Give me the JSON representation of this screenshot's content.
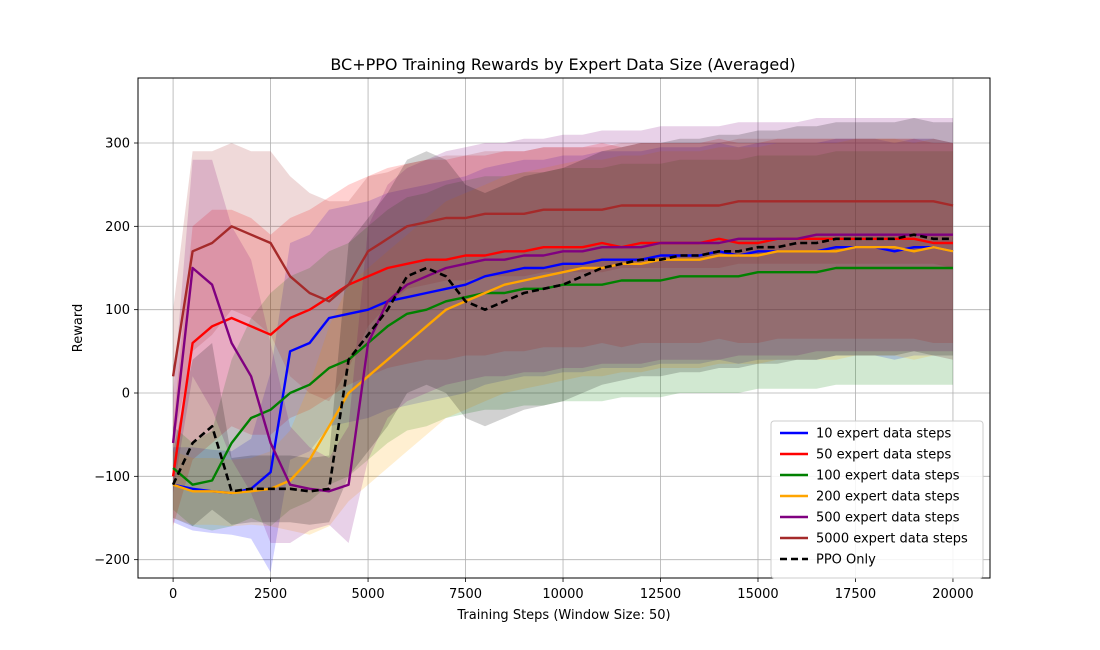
{
  "chart_data": {
    "type": "line",
    "title": "BC+PPO Training Rewards by Expert Data Size (Averaged)",
    "xlabel": "Training Steps (Window Size: 50)",
    "ylabel": "Reward",
    "xlim": [
      -900,
      20950
    ],
    "ylim": [
      -222,
      378
    ],
    "xticks": [
      0,
      2500,
      5000,
      7500,
      10000,
      12500,
      15000,
      17500,
      20000
    ],
    "yticks": [
      -200,
      -100,
      0,
      100,
      200,
      300
    ],
    "grid": true,
    "legend_position": "lower-right",
    "series": [
      {
        "name": "10 expert data steps",
        "color": "#0000ff",
        "dashed": false,
        "x": [
          0,
          500,
          1000,
          1500,
          2000,
          2500,
          3000,
          3500,
          4000,
          4500,
          5000,
          5500,
          6000,
          6500,
          7000,
          7500,
          8000,
          8500,
          9000,
          9500,
          10000,
          10500,
          11000,
          11500,
          12000,
          12500,
          13000,
          13500,
          14000,
          14500,
          15000,
          15500,
          16000,
          16500,
          17000,
          17500,
          18000,
          18500,
          19000,
          19500,
          20000
        ],
        "y": [
          -110,
          -115,
          -118,
          -120,
          -115,
          -95,
          50,
          60,
          90,
          95,
          100,
          110,
          115,
          120,
          125,
          130,
          140,
          145,
          150,
          150,
          155,
          155,
          160,
          160,
          160,
          165,
          165,
          165,
          170,
          165,
          170,
          170,
          170,
          170,
          175,
          175,
          175,
          170,
          175,
          175,
          170
        ],
        "band": [
          45,
          50,
          50,
          50,
          60,
          120,
          130,
          130,
          130,
          130,
          130,
          130,
          130,
          130,
          130,
          130,
          130,
          130,
          130,
          130,
          130,
          130,
          130,
          130,
          130,
          130,
          130,
          130,
          130,
          130,
          130,
          130,
          130,
          130,
          130,
          130,
          130,
          130,
          130,
          130,
          130
        ]
      },
      {
        "name": "50 expert data steps",
        "color": "#ff0000",
        "dashed": false,
        "x": [
          0,
          500,
          1000,
          1500,
          2000,
          2500,
          3000,
          3500,
          4000,
          4500,
          5000,
          5500,
          6000,
          6500,
          7000,
          7500,
          8000,
          8500,
          9000,
          9500,
          10000,
          10500,
          11000,
          11500,
          12000,
          12500,
          13000,
          13500,
          14000,
          14500,
          15000,
          15500,
          16000,
          16500,
          17000,
          17500,
          18000,
          18500,
          19000,
          19500,
          20000
        ],
        "y": [
          -100,
          60,
          80,
          90,
          80,
          70,
          90,
          100,
          115,
          130,
          140,
          150,
          155,
          160,
          160,
          165,
          165,
          170,
          170,
          175,
          175,
          175,
          180,
          175,
          180,
          180,
          180,
          180,
          185,
          180,
          180,
          185,
          185,
          185,
          185,
          185,
          185,
          185,
          185,
          180,
          180
        ],
        "band": [
          60,
          140,
          140,
          130,
          130,
          120,
          120,
          120,
          120,
          120,
          120,
          120,
          120,
          120,
          120,
          120,
          120,
          120,
          120,
          120,
          120,
          120,
          120,
          120,
          120,
          120,
          120,
          120,
          120,
          120,
          120,
          120,
          120,
          120,
          120,
          120,
          120,
          120,
          120,
          120,
          120
        ]
      },
      {
        "name": "100 expert data steps",
        "color": "#008000",
        "dashed": false,
        "x": [
          0,
          500,
          1000,
          1500,
          2000,
          2500,
          3000,
          3500,
          4000,
          4500,
          5000,
          5500,
          6000,
          6500,
          7000,
          7500,
          8000,
          8500,
          9000,
          9500,
          10000,
          10500,
          11000,
          11500,
          12000,
          12500,
          13000,
          13500,
          14000,
          14500,
          15000,
          15500,
          16000,
          16500,
          17000,
          17500,
          18000,
          18500,
          19000,
          19500,
          20000
        ],
        "y": [
          -90,
          -110,
          -105,
          -60,
          -30,
          -20,
          0,
          10,
          30,
          40,
          60,
          80,
          95,
          100,
          110,
          115,
          120,
          120,
          125,
          125,
          130,
          130,
          130,
          135,
          135,
          135,
          140,
          140,
          140,
          140,
          145,
          145,
          145,
          145,
          150,
          150,
          150,
          150,
          150,
          150,
          150
        ],
        "band": [
          50,
          50,
          60,
          100,
          120,
          140,
          140,
          140,
          140,
          140,
          140,
          140,
          140,
          140,
          140,
          140,
          140,
          140,
          140,
          140,
          140,
          140,
          140,
          140,
          140,
          140,
          140,
          140,
          140,
          140,
          140,
          140,
          140,
          140,
          140,
          140,
          140,
          140,
          140,
          140,
          140
        ]
      },
      {
        "name": "200 expert data steps",
        "color": "#ffa500",
        "dashed": false,
        "x": [
          0,
          500,
          1000,
          1500,
          2000,
          2500,
          3000,
          3500,
          4000,
          4500,
          5000,
          5500,
          6000,
          6500,
          7000,
          7500,
          8000,
          8500,
          9000,
          9500,
          10000,
          10500,
          11000,
          11500,
          12000,
          12500,
          13000,
          13500,
          14000,
          14500,
          15000,
          15500,
          16000,
          16500,
          17000,
          17500,
          18000,
          18500,
          19000,
          19500,
          20000
        ],
        "y": [
          -110,
          -118,
          -118,
          -120,
          -118,
          -115,
          -105,
          -80,
          -40,
          0,
          20,
          40,
          60,
          80,
          100,
          110,
          120,
          130,
          135,
          140,
          145,
          150,
          150,
          155,
          155,
          160,
          160,
          160,
          165,
          165,
          165,
          170,
          170,
          170,
          170,
          175,
          175,
          175,
          170,
          175,
          170
        ],
        "band": [
          40,
          40,
          40,
          40,
          40,
          45,
          60,
          90,
          120,
          130,
          130,
          130,
          130,
          130,
          130,
          130,
          130,
          130,
          130,
          130,
          130,
          130,
          130,
          130,
          130,
          130,
          130,
          130,
          130,
          130,
          130,
          130,
          130,
          130,
          130,
          130,
          130,
          130,
          130,
          130,
          130
        ]
      },
      {
        "name": "500 expert data steps",
        "color": "#800080",
        "dashed": false,
        "x": [
          0,
          500,
          1000,
          1500,
          2000,
          2500,
          3000,
          3500,
          4000,
          4500,
          5000,
          5500,
          6000,
          6500,
          7000,
          7500,
          8000,
          8500,
          9000,
          9500,
          10000,
          10500,
          11000,
          11500,
          12000,
          12500,
          13000,
          13500,
          14000,
          14500,
          15000,
          15500,
          16000,
          16500,
          17000,
          17500,
          18000,
          18500,
          19000,
          19500,
          20000
        ],
        "y": [
          -60,
          150,
          130,
          60,
          20,
          -60,
          -110,
          -115,
          -118,
          -110,
          60,
          110,
          130,
          140,
          150,
          155,
          160,
          160,
          165,
          165,
          170,
          170,
          175,
          175,
          175,
          180,
          180,
          180,
          180,
          185,
          185,
          185,
          185,
          190,
          190,
          190,
          190,
          190,
          190,
          190,
          190
        ],
        "band": [
          60,
          130,
          150,
          140,
          140,
          120,
          70,
          50,
          40,
          70,
          140,
          140,
          140,
          140,
          140,
          140,
          140,
          140,
          140,
          140,
          140,
          140,
          140,
          140,
          140,
          140,
          140,
          140,
          140,
          140,
          140,
          140,
          140,
          140,
          140,
          140,
          140,
          140,
          140,
          140,
          140
        ]
      },
      {
        "name": "5000 expert data steps",
        "color": "#a52a2a",
        "dashed": false,
        "x": [
          0,
          500,
          1000,
          1500,
          2000,
          2500,
          3000,
          3500,
          4000,
          4500,
          5000,
          5500,
          6000,
          6500,
          7000,
          7500,
          8000,
          8500,
          9000,
          9500,
          10000,
          10500,
          11000,
          11500,
          12000,
          12500,
          13000,
          13500,
          14000,
          14500,
          15000,
          15500,
          16000,
          16500,
          17000,
          17500,
          18000,
          18500,
          19000,
          19500,
          20000
        ],
        "y": [
          20,
          170,
          180,
          200,
          190,
          180,
          140,
          120,
          110,
          130,
          170,
          185,
          200,
          205,
          210,
          210,
          215,
          215,
          215,
          220,
          220,
          220,
          220,
          225,
          225,
          225,
          225,
          225,
          225,
          230,
          230,
          230,
          230,
          230,
          230,
          230,
          230,
          230,
          230,
          230,
          225
        ],
        "band": [
          80,
          120,
          110,
          100,
          100,
          110,
          120,
          120,
          120,
          100,
          90,
          80,
          75,
          75,
          75,
          75,
          75,
          75,
          75,
          75,
          75,
          75,
          75,
          75,
          75,
          75,
          75,
          75,
          75,
          75,
          75,
          75,
          75,
          75,
          75,
          75,
          75,
          75,
          75,
          75,
          75
        ]
      },
      {
        "name": "PPO Only",
        "color": "#000000",
        "dashed": true,
        "x": [
          0,
          500,
          1000,
          1500,
          2000,
          2500,
          3000,
          3500,
          4000,
          4500,
          5000,
          5500,
          6000,
          6500,
          7000,
          7500,
          8000,
          8500,
          9000,
          9500,
          10000,
          10500,
          11000,
          11500,
          12000,
          12500,
          13000,
          13500,
          14000,
          14500,
          15000,
          15500,
          16000,
          16500,
          17000,
          17500,
          18000,
          18500,
          19000,
          19500,
          20000
        ],
        "y": [
          -110,
          -60,
          -40,
          -118,
          -115,
          -115,
          -115,
          -118,
          -115,
          40,
          70,
          100,
          140,
          150,
          140,
          110,
          100,
          110,
          120,
          125,
          130,
          140,
          150,
          155,
          160,
          160,
          165,
          165,
          170,
          170,
          175,
          175,
          180,
          180,
          185,
          185,
          185,
          185,
          190,
          185,
          185
        ],
        "band": [
          40,
          100,
          100,
          40,
          40,
          40,
          40,
          40,
          40,
          140,
          140,
          140,
          140,
          140,
          140,
          140,
          140,
          140,
          140,
          140,
          140,
          140,
          140,
          140,
          140,
          140,
          140,
          140,
          140,
          140,
          140,
          140,
          140,
          140,
          140,
          140,
          140,
          140,
          140,
          140,
          140
        ]
      }
    ]
  }
}
